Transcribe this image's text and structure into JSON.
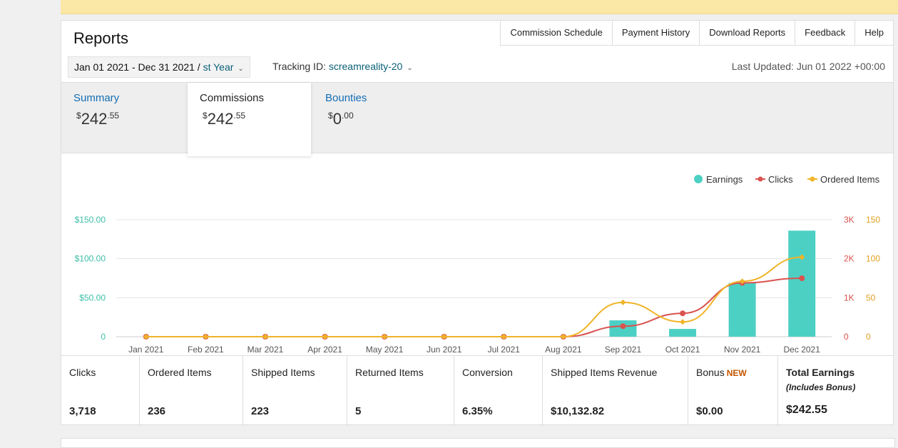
{
  "header": {
    "title": "Reports"
  },
  "toplinks": [
    "Commission Schedule",
    "Payment History",
    "Download Reports",
    "Feedback",
    "Help"
  ],
  "date_range": {
    "prefix": "Jan 01 2021 - Dec 31 2021 / ",
    "visible_link": "st Year"
  },
  "tracking": {
    "label": "Tracking ID: ",
    "value": "screamreality-20"
  },
  "last_updated": "Last Updated: Jun 01 2022 +00:00",
  "tabs": [
    {
      "label": "Summary",
      "currency": "$",
      "whole": "242",
      "cents": ".55"
    },
    {
      "label": "Commissions",
      "currency": "$",
      "whole": "242",
      "cents": ".55"
    },
    {
      "label": "Bounties",
      "currency": "$",
      "whole": "0",
      "cents": ".00"
    }
  ],
  "chart_data": {
    "type": "bar",
    "categories": [
      "Jan 2021",
      "Feb 2021",
      "Mar 2021",
      "Apr 2021",
      "May 2021",
      "Jun 2021",
      "Jul 2021",
      "Aug 2021",
      "Sep 2021",
      "Oct 2021",
      "Nov 2021",
      "Dec 2021"
    ],
    "series": [
      {
        "name": "Earnings",
        "type": "bar",
        "axis": "left",
        "color": "#4dd0c4",
        "values": [
          0,
          0,
          0,
          0,
          0,
          0,
          0,
          0,
          21,
          10,
          69,
          136
        ]
      },
      {
        "name": "Clicks",
        "type": "line",
        "axis": "right1",
        "color": "#d9534f",
        "values": [
          0,
          0,
          0,
          0,
          0,
          0,
          0,
          0,
          270,
          600,
          1380,
          1500
        ]
      },
      {
        "name": "Ordered Items",
        "type": "line",
        "axis": "right2",
        "color": "#f0b429",
        "values": [
          0,
          0,
          0,
          0,
          0,
          0,
          0,
          0,
          44,
          19,
          71,
          102
        ]
      }
    ],
    "left_axis": {
      "ticks": [
        "0",
        "$50.00",
        "$100.00",
        "$150.00"
      ],
      "max": 150,
      "color": "#3dbfa8"
    },
    "right1_axis": {
      "ticks": [
        "0",
        "1K",
        "2K",
        "3K"
      ],
      "max": 3000,
      "color": "#d9534f"
    },
    "right2_axis": {
      "ticks": [
        "0",
        "50",
        "100",
        "150"
      ],
      "max": 150,
      "color": "#e0a020"
    },
    "legend_position": "top-right"
  },
  "metrics": [
    {
      "label": "Clicks",
      "value": "3,718"
    },
    {
      "label": "Ordered Items",
      "value": "236"
    },
    {
      "label": "Shipped Items",
      "value": "223"
    },
    {
      "label": "Returned Items",
      "value": "5"
    },
    {
      "label": "Conversion",
      "value": "6.35%"
    },
    {
      "label": "Shipped Items Revenue",
      "value": "$10,132.82"
    },
    {
      "label": "Bonus",
      "new": "NEW",
      "value": "$0.00"
    },
    {
      "label": "Total Earnings",
      "sub": "(Includes Bonus)",
      "value": "$242.55"
    }
  ]
}
